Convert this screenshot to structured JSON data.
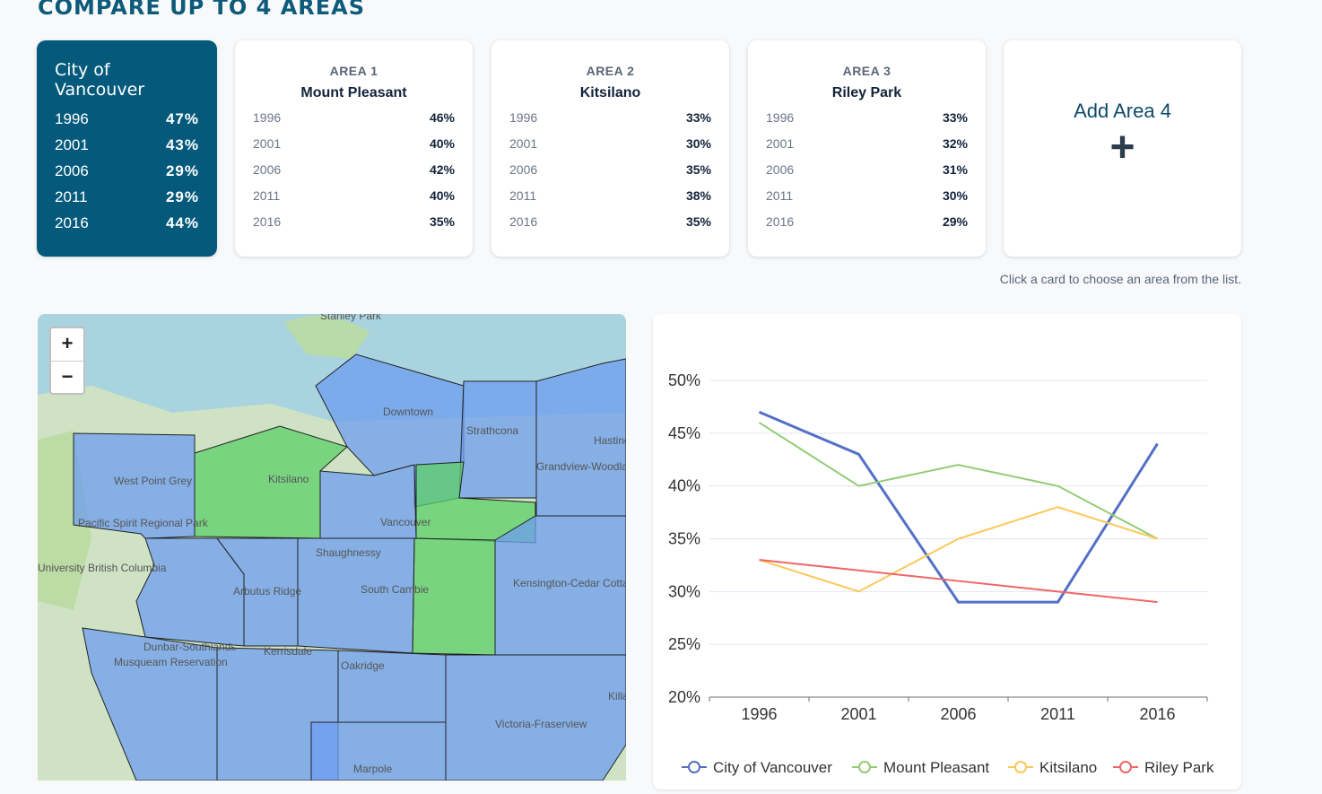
{
  "page": {
    "title": "COMPARE UP TO 4 AREAS",
    "hint": "Click a card to choose an area from the list."
  },
  "city": {
    "name": "City of Vancouver",
    "rows": [
      {
        "year": "1996",
        "value": "47%"
      },
      {
        "year": "2001",
        "value": "43%"
      },
      {
        "year": "2006",
        "value": "29%"
      },
      {
        "year": "2011",
        "value": "29%"
      },
      {
        "year": "2016",
        "value": "44%"
      }
    ]
  },
  "areas": [
    {
      "label": "AREA 1",
      "name": "Mount Pleasant",
      "rows": [
        {
          "year": "1996",
          "value": "46%"
        },
        {
          "year": "2001",
          "value": "40%"
        },
        {
          "year": "2006",
          "value": "42%"
        },
        {
          "year": "2011",
          "value": "40%"
        },
        {
          "year": "2016",
          "value": "35%"
        }
      ]
    },
    {
      "label": "AREA 2",
      "name": "Kitsilano",
      "rows": [
        {
          "year": "1996",
          "value": "33%"
        },
        {
          "year": "2001",
          "value": "30%"
        },
        {
          "year": "2006",
          "value": "35%"
        },
        {
          "year": "2011",
          "value": "38%"
        },
        {
          "year": "2016",
          "value": "35%"
        }
      ]
    },
    {
      "label": "AREA 3",
      "name": "Riley Park",
      "rows": [
        {
          "year": "1996",
          "value": "33%"
        },
        {
          "year": "2001",
          "value": "32%"
        },
        {
          "year": "2006",
          "value": "31%"
        },
        {
          "year": "2011",
          "value": "30%"
        },
        {
          "year": "2016",
          "value": "29%"
        }
      ]
    }
  ],
  "add_card": {
    "label": "Add Area 4",
    "icon": "plus-icon"
  },
  "map": {
    "zoom_in": "+",
    "zoom_out": "−",
    "labels": [
      "Stanley Park",
      "Downtown",
      "Strathcona",
      "Hastings",
      "West Point Grey",
      "Kitsilano",
      "Vancouver",
      "Grandview-Woodland",
      "Pacific Spirit Regional Park",
      "University British Columbia",
      "Shaughnessy",
      "Arbutus Ridge",
      "South Cambie",
      "Kensington-Cedar Cottage",
      "Dunbar-Southlands",
      "Kerrisdale",
      "Oakridge",
      "Musqueam Reservation",
      "Victoria-Fraserview",
      "Marpole",
      "Killarney"
    ],
    "colors": {
      "selected": "#5ccf6a",
      "other": "#6d9ef0",
      "water": "#a9d3df"
    }
  },
  "chart_data": {
    "type": "line",
    "categories": [
      "1996",
      "2001",
      "2006",
      "2011",
      "2016"
    ],
    "ylim": [
      20,
      50
    ],
    "yticks": [
      "20%",
      "25%",
      "30%",
      "35%",
      "40%",
      "45%",
      "50%"
    ],
    "grid": true,
    "legend": "bottom",
    "series": [
      {
        "name": "City of Vancouver",
        "values": [
          47,
          43,
          29,
          29,
          44
        ],
        "color": "#5470c6"
      },
      {
        "name": "Mount Pleasant",
        "values": [
          46,
          40,
          42,
          40,
          35
        ],
        "color": "#91cc75"
      },
      {
        "name": "Kitsilano",
        "values": [
          33,
          30,
          35,
          38,
          35
        ],
        "color": "#fac858"
      },
      {
        "name": "Riley Park",
        "values": [
          33,
          32,
          31,
          30,
          29
        ],
        "color": "#ee6666"
      }
    ]
  }
}
